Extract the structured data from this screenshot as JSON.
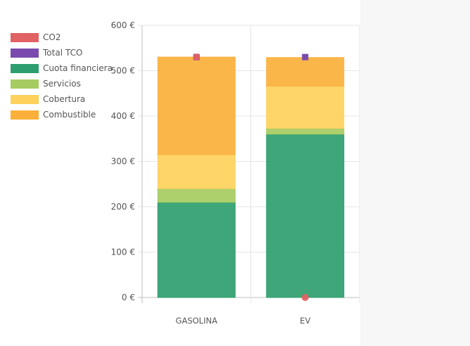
{
  "chart_data": {
    "type": "bar",
    "stacked": true,
    "currency_suffix": " €",
    "categories": [
      "GASOLINA",
      "EV"
    ],
    "ylim": [
      0,
      600
    ],
    "yticks": [
      0,
      100,
      200,
      300,
      400,
      500,
      600
    ],
    "grid": true,
    "legend_position": "left",
    "series": [
      {
        "name": "Cuota financiera",
        "color": "#2e9e6e",
        "values": [
          210,
          360
        ]
      },
      {
        "name": "Servicios",
        "color": "#a6cc61",
        "values": [
          30,
          13
        ]
      },
      {
        "name": "Cobertura",
        "color": "#fdd15c",
        "values": [
          75,
          93
        ]
      },
      {
        "name": "Combustible",
        "color": "#fbb03b",
        "values": [
          215,
          63
        ]
      }
    ],
    "markers": [
      {
        "name": "CO2",
        "color": "#e06262",
        "shape": "circle",
        "values": [
          530,
          0
        ]
      },
      {
        "name": "Total TCO",
        "color": "#7a4aae",
        "shape": "square",
        "values": [
          530,
          530
        ]
      }
    ],
    "legend": [
      {
        "name": "CO2",
        "color": "#e06262"
      },
      {
        "name": "Total TCO",
        "color": "#7a4aae"
      },
      {
        "name": "Cuota financiera",
        "color": "#2e9e6e"
      },
      {
        "name": "Servicios",
        "color": "#a6cc61"
      },
      {
        "name": "Cobertura",
        "color": "#fdd15c"
      },
      {
        "name": "Combustible",
        "color": "#fbb03b"
      }
    ]
  }
}
